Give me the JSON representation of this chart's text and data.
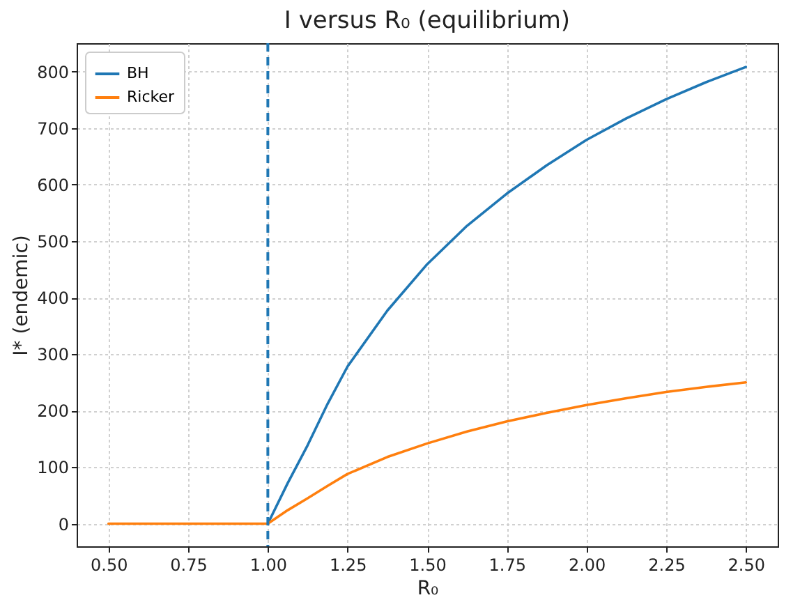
{
  "chart_data": {
    "type": "line",
    "title": "I versus R₀ (equilibrium)",
    "xlabel": "R₀",
    "ylabel": "I* (endemic)",
    "xlim": [
      0.4,
      2.6
    ],
    "xticks": [
      {
        "value": 0.5,
        "label": "0.50"
      },
      {
        "value": 0.75,
        "label": "0.75"
      },
      {
        "value": 1,
        "label": "1.00"
      },
      {
        "value": 1.25,
        "label": "1.25"
      },
      {
        "value": 1.5,
        "label": "1.50"
      },
      {
        "value": 1.75,
        "label": "1.75"
      },
      {
        "value": 2,
        "label": "2.00"
      },
      {
        "value": 2.25,
        "label": "2.25"
      },
      {
        "value": 2.5,
        "label": "2.50"
      }
    ],
    "ylim": [
      -40,
      850
    ],
    "yticks": [
      0,
      100,
      200,
      300,
      400,
      500,
      600,
      700,
      800
    ],
    "grid": true,
    "legend": "top left",
    "line_style": "solid",
    "marker": "none",
    "series": [
      {
        "name": "BH",
        "color": "#1f77b4",
        "x": [
          1.0,
          1.0625,
          1.125,
          1.1875,
          1.25,
          1.375,
          1.5,
          1.625,
          1.75,
          1.875,
          2.0,
          2.125,
          2.25,
          2.375,
          2.5
        ],
        "values": [
          0,
          72,
          139,
          212,
          278,
          377,
          459,
          527,
          584,
          634,
          679,
          717,
          751,
          781,
          808
        ]
      },
      {
        "name": "Ricker",
        "color": "#ff7f0e",
        "x": [
          0.5,
          0.75,
          0.99,
          1.0,
          1.0625,
          1.125,
          1.1875,
          1.25,
          1.375,
          1.5,
          1.625,
          1.75,
          1.875,
          2.0,
          2.125,
          2.25,
          2.375,
          2.5
        ],
        "values": [
          0,
          0,
          0,
          0,
          24,
          45,
          67,
          88,
          118,
          142,
          163,
          181,
          196,
          210,
          222,
          233,
          242,
          250
        ]
      }
    ],
    "ref_lines": [
      {
        "axis": "x",
        "value": 1.0,
        "color": "#1f77b4",
        "line_style": "dashed"
      }
    ]
  }
}
